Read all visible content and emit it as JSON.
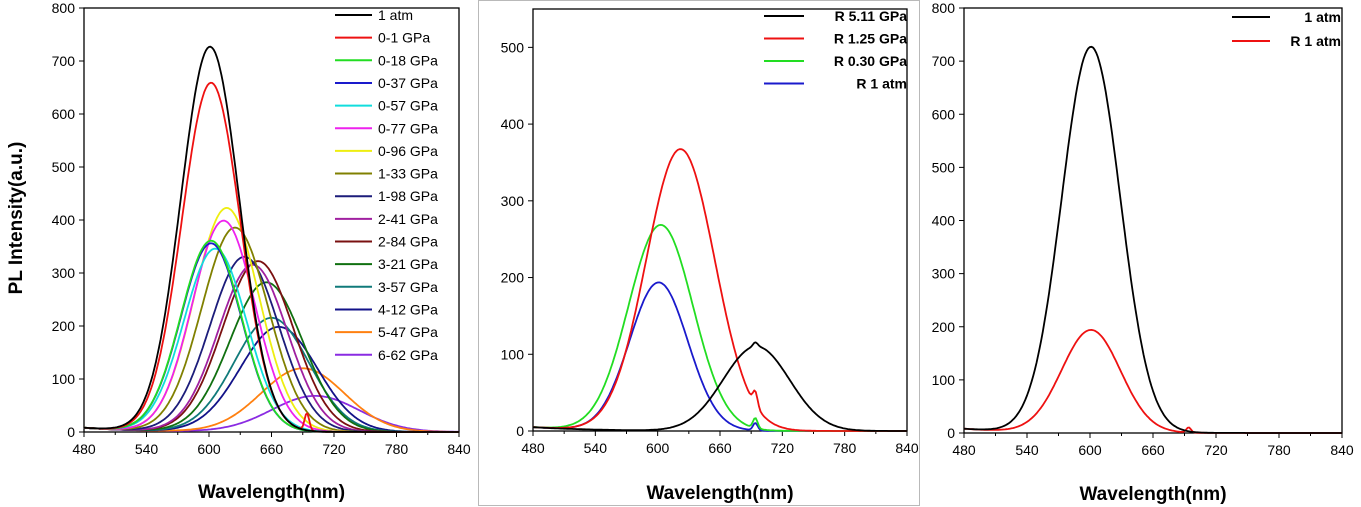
{
  "chart_data": [
    {
      "type": "line",
      "xlabel": "Wavelength(nm)",
      "ylabel": "PL Intensity(a.u.)",
      "xlim": [
        480,
        840
      ],
      "ylim": [
        0,
        800
      ],
      "xticks": [
        "480",
        "540",
        "600",
        "660",
        "720",
        "780",
        "840"
      ],
      "yticks": [
        "0",
        "100",
        "200",
        "300",
        "400",
        "500",
        "600",
        "700",
        "800"
      ],
      "legend_position": "top-right",
      "series": [
        {
          "name": "1 atm",
          "color": "#000000",
          "peak_x": 601,
          "peak_y": 726,
          "width": 28
        },
        {
          "name": "0-1 GPa",
          "color": "#ee1111",
          "peak_x": 602,
          "peak_y": 658,
          "width": 28
        },
        {
          "name": "0-18 GPa",
          "color": "#22dd22",
          "peak_x": 602,
          "peak_y": 360,
          "width": 29
        },
        {
          "name": "0-37 GPa",
          "color": "#1a1acc",
          "peak_x": 602,
          "peak_y": 355,
          "width": 29
        },
        {
          "name": "0-57 GPa",
          "color": "#11dddd",
          "peak_x": 606,
          "peak_y": 345,
          "width": 30
        },
        {
          "name": "0-77 GPa",
          "color": "#ee22ee",
          "peak_x": 614,
          "peak_y": 398,
          "width": 30
        },
        {
          "name": "0-96 GPa",
          "color": "#eeee11",
          "peak_x": 617,
          "peak_y": 422,
          "width": 31
        },
        {
          "name": "1-33 GPa",
          "color": "#808000",
          "peak_x": 625,
          "peak_y": 385,
          "width": 32
        },
        {
          "name": "1-98 GPa",
          "color": "#1c1c7a",
          "peak_x": 634,
          "peak_y": 330,
          "width": 33
        },
        {
          "name": "2-41 GPa",
          "color": "#a020a0",
          "peak_x": 642,
          "peak_y": 315,
          "width": 33
        },
        {
          "name": "2-84 GPa",
          "color": "#7a1010",
          "peak_x": 647,
          "peak_y": 322,
          "width": 34
        },
        {
          "name": "3-21 GPa",
          "color": "#107010",
          "peak_x": 655,
          "peak_y": 282,
          "width": 35
        },
        {
          "name": "3-57 GPa",
          "color": "#107a7a",
          "peak_x": 660,
          "peak_y": 215,
          "width": 36
        },
        {
          "name": "4-12 GPa",
          "color": "#121288",
          "peak_x": 667,
          "peak_y": 198,
          "width": 37
        },
        {
          "name": "5-47 GPa",
          "color": "#ff8010",
          "peak_x": 690,
          "peak_y": 120,
          "width": 40
        },
        {
          "name": "6-62 GPa",
          "color": "#8a2be2",
          "peak_x": 702,
          "peak_y": 68,
          "width": 42
        }
      ]
    },
    {
      "type": "line",
      "xlabel": "Wavelength(nm)",
      "ylabel": "",
      "xlim": [
        480,
        840
      ],
      "ylim": [
        0,
        550
      ],
      "xticks": [
        "480",
        "540",
        "600",
        "660",
        "720",
        "780",
        "840"
      ],
      "yticks": [
        "0",
        "100",
        "200",
        "300",
        "400",
        "500"
      ],
      "legend_position": "top-right",
      "series": [
        {
          "name": "R 5.11 GPa",
          "color": "#000000",
          "peak_x": 695,
          "peak_y": 110,
          "width": 32
        },
        {
          "name": "R 1.25 GPa",
          "color": "#ee1111",
          "peak_x": 622,
          "peak_y": 367,
          "width": 33
        },
        {
          "name": "R 0.30 GPa",
          "color": "#22dd22",
          "peak_x": 603,
          "peak_y": 268,
          "width": 31
        },
        {
          "name": "R 1 atm",
          "color": "#1a1acc",
          "peak_x": 601,
          "peak_y": 193,
          "width": 28
        }
      ]
    },
    {
      "type": "line",
      "xlabel": "Wavelength(nm)",
      "ylabel": "",
      "xlim": [
        480,
        840
      ],
      "ylim": [
        0,
        800
      ],
      "xticks": [
        "480",
        "540",
        "600",
        "660",
        "720",
        "780",
        "840"
      ],
      "yticks": [
        "0",
        "100",
        "200",
        "300",
        "400",
        "500",
        "600",
        "700",
        "800"
      ],
      "legend_position": "top-right",
      "series": [
        {
          "name": "1 atm",
          "color": "#000000",
          "peak_x": 601,
          "peak_y": 726,
          "width": 28
        },
        {
          "name": "R 1 atm",
          "color": "#ee1111",
          "peak_x": 601,
          "peak_y": 193,
          "width": 28
        }
      ]
    }
  ]
}
